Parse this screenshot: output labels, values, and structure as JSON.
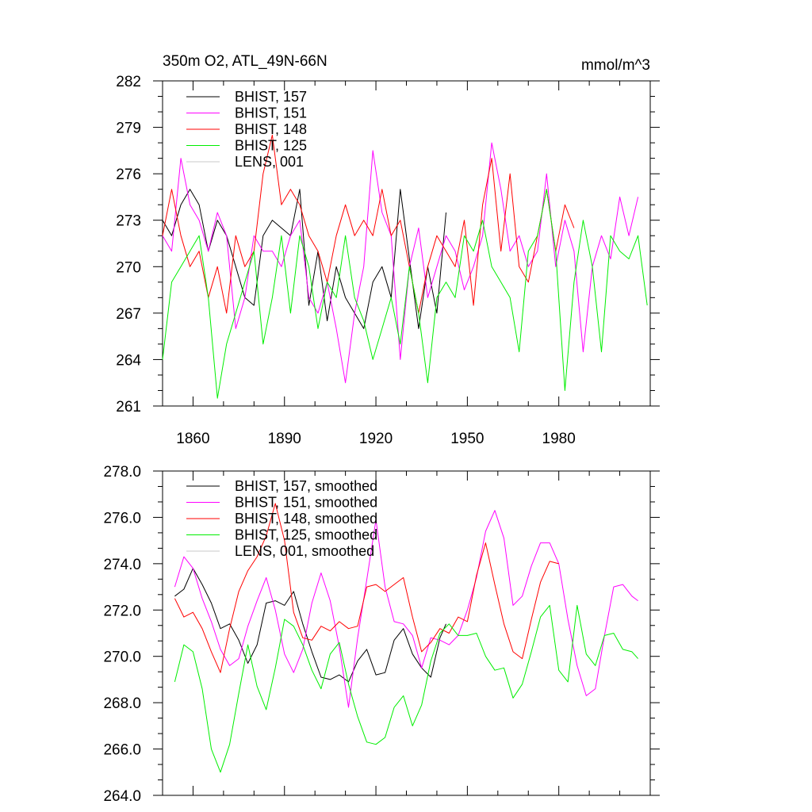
{
  "chart_data": [
    {
      "type": "line",
      "title": "350m O2, ATL_49N-66N",
      "units": "mmol/m^3",
      "xlabel": "",
      "ylabel": "",
      "xlim": [
        1850,
        2010
      ],
      "ylim": [
        261,
        282
      ],
      "x_ticks": [
        "1860",
        "1890",
        "1920",
        "1950",
        "1980"
      ],
      "y_ticks": [
        "261",
        "264",
        "267",
        "270",
        "273",
        "276",
        "279",
        "282"
      ],
      "legend_position": "top-left",
      "series": [
        {
          "name": "BHIST, 157",
          "color": "#000000",
          "x": [
            1850,
            1853,
            1856,
            1859,
            1862,
            1865,
            1868,
            1871,
            1874,
            1877,
            1880,
            1883,
            1886,
            1889,
            1892,
            1895,
            1898,
            1901,
            1904,
            1907,
            1910,
            1913,
            1916,
            1919,
            1922,
            1925,
            1928,
            1931,
            1934,
            1937,
            1940,
            1943
          ],
          "y": [
            273,
            272,
            274,
            275,
            274,
            271,
            273,
            272,
            270,
            268,
            267.5,
            272,
            273,
            272.5,
            272,
            275,
            267.5,
            271,
            266.5,
            270,
            268,
            267,
            266,
            269,
            270,
            268,
            275,
            270.5,
            266,
            270,
            267,
            273.5
          ]
        },
        {
          "name": "BHIST, 151",
          "color": "#ff00ff",
          "x": [
            1850,
            1853,
            1856,
            1859,
            1862,
            1865,
            1868,
            1871,
            1874,
            1877,
            1880,
            1883,
            1886,
            1889,
            1892,
            1895,
            1898,
            1901,
            1904,
            1907,
            1910,
            1913,
            1916,
            1919,
            1922,
            1925,
            1928,
            1931,
            1934,
            1937,
            1940,
            1943,
            1946,
            1949,
            1952,
            1955,
            1958,
            1961,
            1964,
            1967,
            1970,
            1973,
            1976,
            1979,
            1982,
            1985,
            1988,
            1991,
            1994,
            1997,
            2000,
            2003,
            2006
          ],
          "y": [
            272,
            271,
            277,
            274,
            273,
            271,
            273.5,
            272,
            266,
            268,
            272,
            271,
            271,
            270,
            272,
            273,
            268,
            267,
            269,
            266,
            262.5,
            267,
            270,
            277.5,
            273.5,
            272,
            264,
            270,
            272.5,
            268,
            270,
            272,
            271,
            268.5,
            270,
            272,
            278,
            275,
            271,
            272,
            270,
            271,
            276,
            270,
            273,
            271,
            264.5,
            270,
            272,
            270.5,
            274.5,
            272,
            274.5
          ]
        },
        {
          "name": "BHIST, 148",
          "color": "#ff0000",
          "x": [
            1850,
            1853,
            1856,
            1859,
            1862,
            1865,
            1868,
            1871,
            1874,
            1877,
            1880,
            1883,
            1886,
            1889,
            1892,
            1895,
            1898,
            1901,
            1904,
            1907,
            1910,
            1913,
            1916,
            1919,
            1922,
            1925,
            1928,
            1931,
            1934,
            1937,
            1940,
            1943,
            1946,
            1949,
            1952,
            1955,
            1958,
            1961,
            1964,
            1967,
            1970,
            1973,
            1976,
            1979,
            1982,
            1985
          ],
          "y": [
            272,
            275,
            272,
            270,
            271,
            268,
            270,
            267,
            272,
            270,
            271,
            276,
            278.5,
            274,
            275,
            274,
            272,
            271,
            269,
            272,
            274,
            272,
            273,
            272,
            275,
            272,
            273,
            270,
            267,
            270,
            272,
            271,
            270,
            273,
            267.5,
            274,
            277,
            271,
            276,
            270,
            269,
            272,
            275,
            271,
            274,
            272.5
          ]
        },
        {
          "name": "BHIST, 125",
          "color": "#00ee00",
          "x": [
            1850,
            1853,
            1856,
            1859,
            1862,
            1865,
            1868,
            1871,
            1874,
            1877,
            1880,
            1883,
            1886,
            1889,
            1892,
            1895,
            1898,
            1901,
            1904,
            1907,
            1910,
            1913,
            1916,
            1919,
            1922,
            1925,
            1928,
            1931,
            1934,
            1937,
            1940,
            1943,
            1946,
            1949,
            1952,
            1955,
            1958,
            1961,
            1964,
            1967,
            1970,
            1973,
            1976,
            1979,
            1982,
            1985,
            1988,
            1991,
            1994,
            1997,
            2000,
            2003,
            2006,
            2009
          ],
          "y": [
            264,
            269,
            270,
            271,
            272,
            268,
            261.5,
            265,
            267,
            269,
            271,
            265,
            268,
            272,
            267,
            272,
            270,
            266,
            269,
            268,
            272,
            268,
            266.5,
            264,
            266,
            268,
            265,
            270,
            267,
            262.5,
            268,
            269,
            268,
            272,
            271,
            273,
            270,
            269,
            268,
            264.5,
            271,
            272,
            275,
            271,
            262,
            269,
            273,
            270,
            264.5,
            272,
            271,
            270.5,
            272,
            267.5
          ]
        },
        {
          "name": "LENS, 001",
          "color": "#c8c8c8",
          "x": [],
          "y": []
        }
      ]
    },
    {
      "type": "line",
      "title": "",
      "xlabel": "",
      "ylabel": "",
      "xlim": [
        1850,
        2010
      ],
      "ylim": [
        264,
        278
      ],
      "x_ticks": [],
      "y_ticks": [
        "264.0",
        "266.0",
        "268.0",
        "270.0",
        "272.0",
        "274.0",
        "276.0",
        "278.0"
      ],
      "legend_position": "top-left",
      "series": [
        {
          "name": "BHIST, 157, smoothed",
          "color": "#000000",
          "x": [
            1854,
            1857,
            1860,
            1863,
            1866,
            1869,
            1872,
            1875,
            1878,
            1881,
            1884,
            1887,
            1890,
            1893,
            1896,
            1899,
            1902,
            1905,
            1908,
            1911,
            1914,
            1917,
            1920,
            1923,
            1926,
            1929,
            1932,
            1935,
            1938,
            1941,
            1943
          ],
          "y": [
            272.6,
            272.9,
            273.8,
            273.1,
            272.3,
            271.2,
            271.4,
            270.7,
            269.7,
            270.5,
            272.3,
            272.4,
            272.2,
            272.8,
            271.4,
            270.2,
            269.1,
            269.0,
            269.2,
            268.9,
            269.8,
            270.3,
            269.2,
            269.3,
            270.7,
            271.2,
            270.1,
            269.5,
            269.1,
            270.8,
            271.4
          ]
        },
        {
          "name": "BHIST, 151, smoothed",
          "color": "#ff00ff",
          "x": [
            1854,
            1857,
            1860,
            1863,
            1866,
            1869,
            1872,
            1875,
            1878,
            1881,
            1884,
            1887,
            1890,
            1893,
            1896,
            1899,
            1902,
            1905,
            1908,
            1911,
            1914,
            1917,
            1920,
            1923,
            1926,
            1929,
            1932,
            1935,
            1938,
            1941,
            1944,
            1947,
            1950,
            1953,
            1956,
            1959,
            1962,
            1965,
            1968,
            1971,
            1974,
            1977,
            1980,
            1983,
            1986,
            1989,
            1992,
            1995,
            1998,
            2001,
            2004,
            2006
          ],
          "y": [
            273.0,
            274.3,
            273.8,
            272.5,
            271.5,
            270.3,
            269.6,
            269.9,
            271.3,
            272.4,
            273.4,
            272.0,
            270.1,
            269.3,
            270.3,
            272.3,
            273.6,
            272.4,
            270.4,
            267.8,
            270.8,
            273.3,
            275.9,
            273.0,
            271.5,
            271.4,
            270.9,
            269.5,
            270.8,
            270.7,
            270.5,
            270.9,
            272.0,
            273.4,
            275.4,
            276.3,
            275.1,
            272.2,
            272.6,
            273.9,
            274.9,
            274.9,
            274.0,
            271.6,
            269.6,
            268.3,
            268.6,
            270.9,
            273.0,
            273.1,
            272.6,
            272.4
          ]
        },
        {
          "name": "BHIST, 148, smoothed",
          "color": "#ff0000",
          "x": [
            1854,
            1857,
            1860,
            1863,
            1866,
            1869,
            1872,
            1875,
            1878,
            1881,
            1884,
            1887,
            1890,
            1893,
            1896,
            1899,
            1902,
            1905,
            1908,
            1911,
            1914,
            1917,
            1920,
            1923,
            1926,
            1929,
            1932,
            1935,
            1938,
            1941,
            1944,
            1947,
            1950,
            1953,
            1956,
            1959,
            1962,
            1965,
            1968,
            1971,
            1974,
            1977,
            1980
          ],
          "y": [
            272.5,
            271.7,
            271.9,
            271.2,
            270.2,
            269.3,
            271.2,
            272.8,
            273.7,
            274.3,
            275.2,
            276.6,
            275.0,
            271.9,
            270.8,
            270.7,
            271.3,
            271.1,
            271.5,
            271.2,
            271.3,
            273.0,
            273.1,
            272.8,
            273.1,
            273.4,
            271.7,
            270.2,
            270.6,
            271.2,
            271.0,
            271.7,
            271.5,
            273.5,
            274.9,
            273.1,
            271.4,
            270.2,
            269.9,
            271.6,
            273.2,
            274.1,
            274.0
          ]
        },
        {
          "name": "BHIST, 125, smoothed",
          "color": "#00ee00",
          "x": [
            1854,
            1857,
            1860,
            1863,
            1866,
            1869,
            1872,
            1875,
            1878,
            1881,
            1884,
            1887,
            1890,
            1893,
            1896,
            1899,
            1902,
            1905,
            1908,
            1911,
            1914,
            1917,
            1920,
            1923,
            1926,
            1929,
            1932,
            1935,
            1938,
            1941,
            1944,
            1947,
            1950,
            1953,
            1956,
            1959,
            1962,
            1965,
            1968,
            1971,
            1974,
            1977,
            1980,
            1983,
            1986,
            1989,
            1992,
            1995,
            1998,
            2001,
            2004,
            2006
          ],
          "y": [
            268.9,
            270.5,
            270.2,
            268.6,
            266.0,
            265.0,
            266.2,
            268.4,
            270.5,
            268.7,
            267.7,
            269.5,
            271.6,
            271.3,
            270.5,
            269.4,
            268.6,
            270.1,
            270.6,
            268.8,
            267.4,
            266.3,
            266.2,
            266.5,
            267.8,
            268.3,
            267.0,
            267.9,
            269.8,
            271.0,
            271.4,
            270.9,
            270.9,
            271.0,
            270.0,
            269.4,
            269.5,
            268.2,
            268.8,
            270.2,
            271.7,
            272.2,
            269.4,
            268.9,
            272.2,
            270.1,
            269.6,
            270.9,
            271.0,
            270.3,
            270.2,
            269.9
          ]
        },
        {
          "name": "LENS, 001, smoothed",
          "color": "#c8c8c8",
          "x": [],
          "y": []
        }
      ]
    }
  ]
}
